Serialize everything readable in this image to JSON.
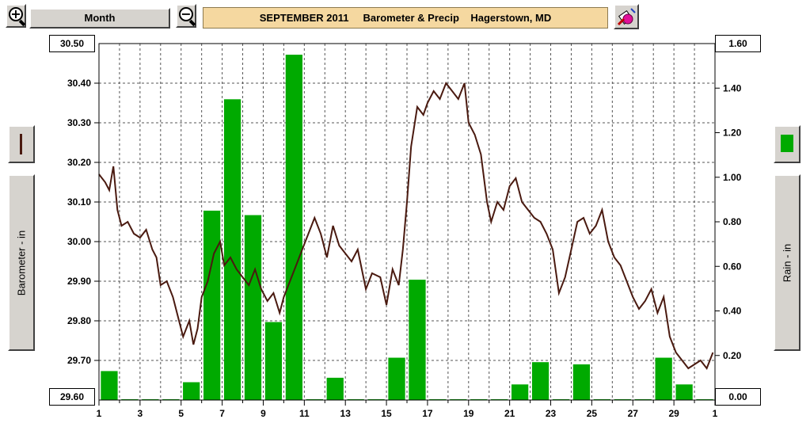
{
  "toolbar": {
    "zoom_in_icon": "zoom-in-icon",
    "zoom_out_icon": "zoom-out-icon",
    "period_label": "Month",
    "title": "SEPTEMBER 2011     Barometer & Precip    Hagerstown, MD",
    "tool_icon": "paint-bucket-icon"
  },
  "left_axis": {
    "label": "Barometer - in",
    "top_value": "30.50",
    "bottom_value": "29.60",
    "legend_icon": "brown-line-icon"
  },
  "right_axis": {
    "label": "Rain - in",
    "top_value": "1.60",
    "bottom_value": "0.00",
    "legend_icon": "green-bar-icon"
  },
  "colors": {
    "barometer_line": "#4a1a10",
    "rain_bar": "#00aa00",
    "grid": "#555555",
    "title_bg": "#f5d8a0"
  },
  "chart_data": {
    "type": "bar+line",
    "title": "SEPTEMBER 2011     Barometer & Precip    Hagerstown, MD",
    "x_range": [
      1,
      31
    ],
    "x_ticks": [
      "1",
      "3",
      "5",
      "7",
      "9",
      "11",
      "13",
      "15",
      "17",
      "19",
      "21",
      "23",
      "25",
      "27",
      "29",
      "1"
    ],
    "grid": true,
    "y_left": {
      "label": "Barometer - in",
      "range": [
        29.6,
        30.5
      ],
      "ticks": [
        "30.50",
        "30.40",
        "30.30",
        "30.20",
        "30.10",
        "30.00",
        "29.90",
        "29.80",
        "29.70",
        "29.60"
      ]
    },
    "y_right": {
      "label": "Rain - in",
      "range": [
        0,
        1.6
      ],
      "ticks": [
        "1.60",
        "1.40",
        "1.20",
        "1.00",
        "0.80",
        "0.60",
        "0.40",
        "0.20",
        "0.00"
      ]
    },
    "series": [
      {
        "type": "bar",
        "axis": "right",
        "days": [
          1,
          2,
          3,
          4,
          5,
          6,
          7,
          8,
          9,
          10,
          11,
          12,
          13,
          14,
          15,
          16,
          17,
          18,
          19,
          20,
          21,
          22,
          23,
          24,
          25,
          26,
          27,
          28,
          29,
          30
        ],
        "values": [
          0.13,
          0,
          0,
          0,
          0.08,
          0.85,
          1.35,
          0.83,
          0.35,
          1.55,
          0,
          0.1,
          0,
          0,
          0.19,
          0.54,
          0,
          0,
          0,
          0,
          0.07,
          0.17,
          0,
          0.16,
          0,
          0,
          0,
          0.19,
          0.07,
          0
        ]
      },
      {
        "type": "line",
        "axis": "left",
        "x": [
          1,
          1.3,
          1.5,
          1.7,
          1.9,
          2.1,
          2.4,
          2.7,
          3,
          3.3,
          3.6,
          3.8,
          4,
          4.3,
          4.6,
          4.9,
          5.1,
          5.4,
          5.6,
          5.8,
          6,
          6.3,
          6.6,
          6.9,
          7.1,
          7.4,
          7.7,
          8,
          8.3,
          8.6,
          8.9,
          9.2,
          9.5,
          9.8,
          10,
          10.3,
          10.6,
          10.9,
          11.2,
          11.5,
          11.8,
          12.1,
          12.4,
          12.7,
          13,
          13.3,
          13.6,
          14,
          14.3,
          14.7,
          15,
          15.3,
          15.6,
          15.8,
          16,
          16.2,
          16.5,
          16.8,
          17,
          17.3,
          17.6,
          17.9,
          18.2,
          18.5,
          18.8,
          19,
          19.3,
          19.6,
          19.9,
          20.1,
          20.4,
          20.7,
          21,
          21.3,
          21.6,
          21.9,
          22.2,
          22.5,
          22.8,
          23.1,
          23.4,
          23.7,
          24,
          24.3,
          24.6,
          24.9,
          25.2,
          25.5,
          25.8,
          26.1,
          26.4,
          26.7,
          27,
          27.3,
          27.6,
          27.9,
          28.2,
          28.5,
          28.8,
          29.1,
          29.4,
          29.7,
          30,
          30.3,
          30.6,
          30.9
        ],
        "values": [
          30.17,
          30.15,
          30.13,
          30.19,
          30.08,
          30.04,
          30.05,
          30.02,
          30.01,
          30.03,
          29.98,
          29.96,
          29.89,
          29.9,
          29.86,
          29.8,
          29.76,
          29.8,
          29.74,
          29.78,
          29.86,
          29.9,
          29.97,
          30.0,
          29.94,
          29.96,
          29.93,
          29.91,
          29.89,
          29.93,
          29.88,
          29.85,
          29.87,
          29.82,
          29.86,
          29.9,
          29.94,
          29.98,
          30.02,
          30.06,
          30.02,
          29.96,
          30.04,
          29.99,
          29.97,
          29.95,
          29.98,
          29.88,
          29.92,
          29.91,
          29.84,
          29.93,
          29.89,
          29.98,
          30.1,
          30.24,
          30.34,
          30.32,
          30.35,
          30.38,
          30.36,
          30.4,
          30.38,
          30.36,
          30.4,
          30.3,
          30.27,
          30.22,
          30.1,
          30.05,
          30.1,
          30.08,
          30.14,
          30.16,
          30.1,
          30.08,
          30.06,
          30.05,
          30.02,
          29.98,
          29.87,
          29.91,
          29.98,
          30.05,
          30.06,
          30.02,
          30.04,
          30.08,
          30.0,
          29.96,
          29.94,
          29.9,
          29.86,
          29.83,
          29.85,
          29.88,
          29.82,
          29.86,
          29.76,
          29.72,
          29.7,
          29.68,
          29.69,
          29.7,
          29.68,
          29.72
        ]
      }
    ]
  }
}
